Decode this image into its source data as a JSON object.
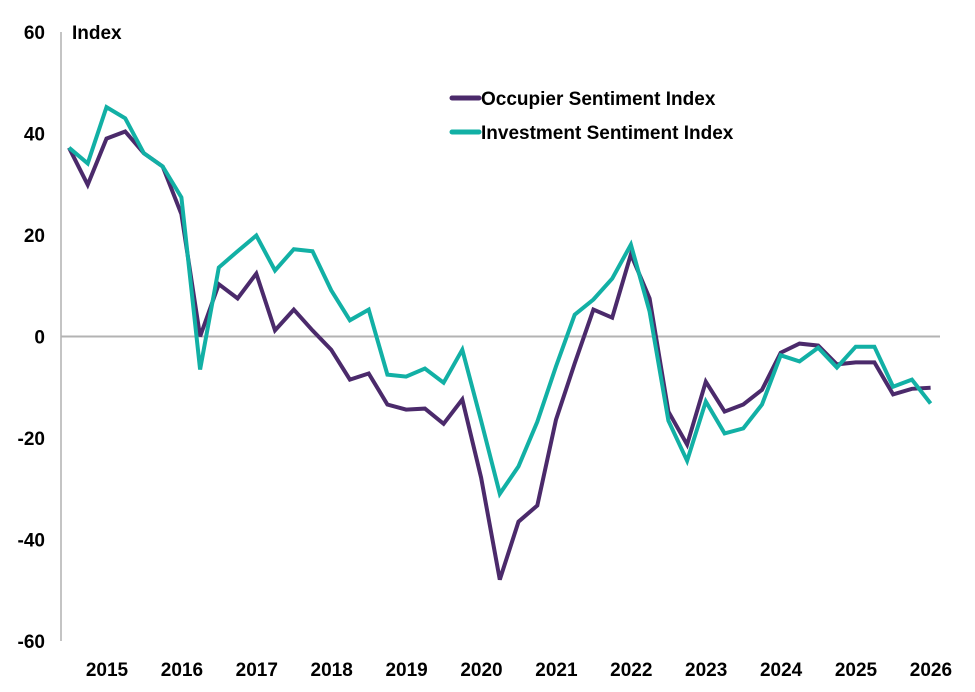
{
  "chart_data": {
    "type": "line",
    "title": "",
    "ylabel": "Index",
    "xlabel": "",
    "ylim": [
      -60,
      60
    ],
    "yticks": [
      60,
      40,
      20,
      0,
      -20,
      -40,
      -60
    ],
    "xtick_labels": [
      "2015",
      "2016",
      "2017",
      "2018",
      "2019",
      "2020",
      "2021",
      "2022",
      "2023",
      "2024",
      "2025",
      "2026"
    ],
    "legend_position": "top-center",
    "grid": false,
    "zero_line": true,
    "series": [
      {
        "name": "Occupier Sentiment Index",
        "color": "#4b2a6b",
        "values": [
          37.2,
          29.9,
          39.0,
          40.4,
          36.1,
          33.5,
          24.1,
          0.0,
          10.3,
          7.5,
          12.4,
          1.2,
          5.3,
          1.2,
          -2.6,
          -8.5,
          -7.3,
          -13.4,
          -14.4,
          -14.2,
          -17.2,
          -12.4,
          -27.8,
          -47.9,
          -36.5,
          -33.3,
          -16.4,
          -5.3,
          5.3,
          3.7,
          16.2,
          7.5,
          -14.8,
          -21.3,
          -8.9,
          -14.8,
          -13.4,
          -10.5,
          -3.2,
          -1.4,
          -1.8,
          -5.5,
          -5.1,
          -5.1,
          -11.4,
          -10.3,
          -10.1
        ]
      },
      {
        "name": "Investment Sentiment Index",
        "color": "#12b0a5",
        "values": [
          37.2,
          34.1,
          45.2,
          43.0,
          36.1,
          33.5,
          27.4,
          -6.5,
          13.6,
          16.8,
          19.9,
          13.0,
          17.2,
          16.8,
          9.1,
          3.2,
          5.3,
          -7.5,
          -7.9,
          -6.3,
          -9.1,
          -2.6,
          -16.6,
          -31.0,
          -25.6,
          -16.8,
          -5.9,
          4.3,
          7.3,
          11.4,
          18.1,
          4.9,
          -16.6,
          -24.5,
          -12.8,
          -19.1,
          -18.1,
          -13.4,
          -3.7,
          -4.9,
          -2.2,
          -6.1,
          -2.0,
          -2.0,
          -9.9,
          -8.5,
          -13.2
        ]
      }
    ]
  }
}
